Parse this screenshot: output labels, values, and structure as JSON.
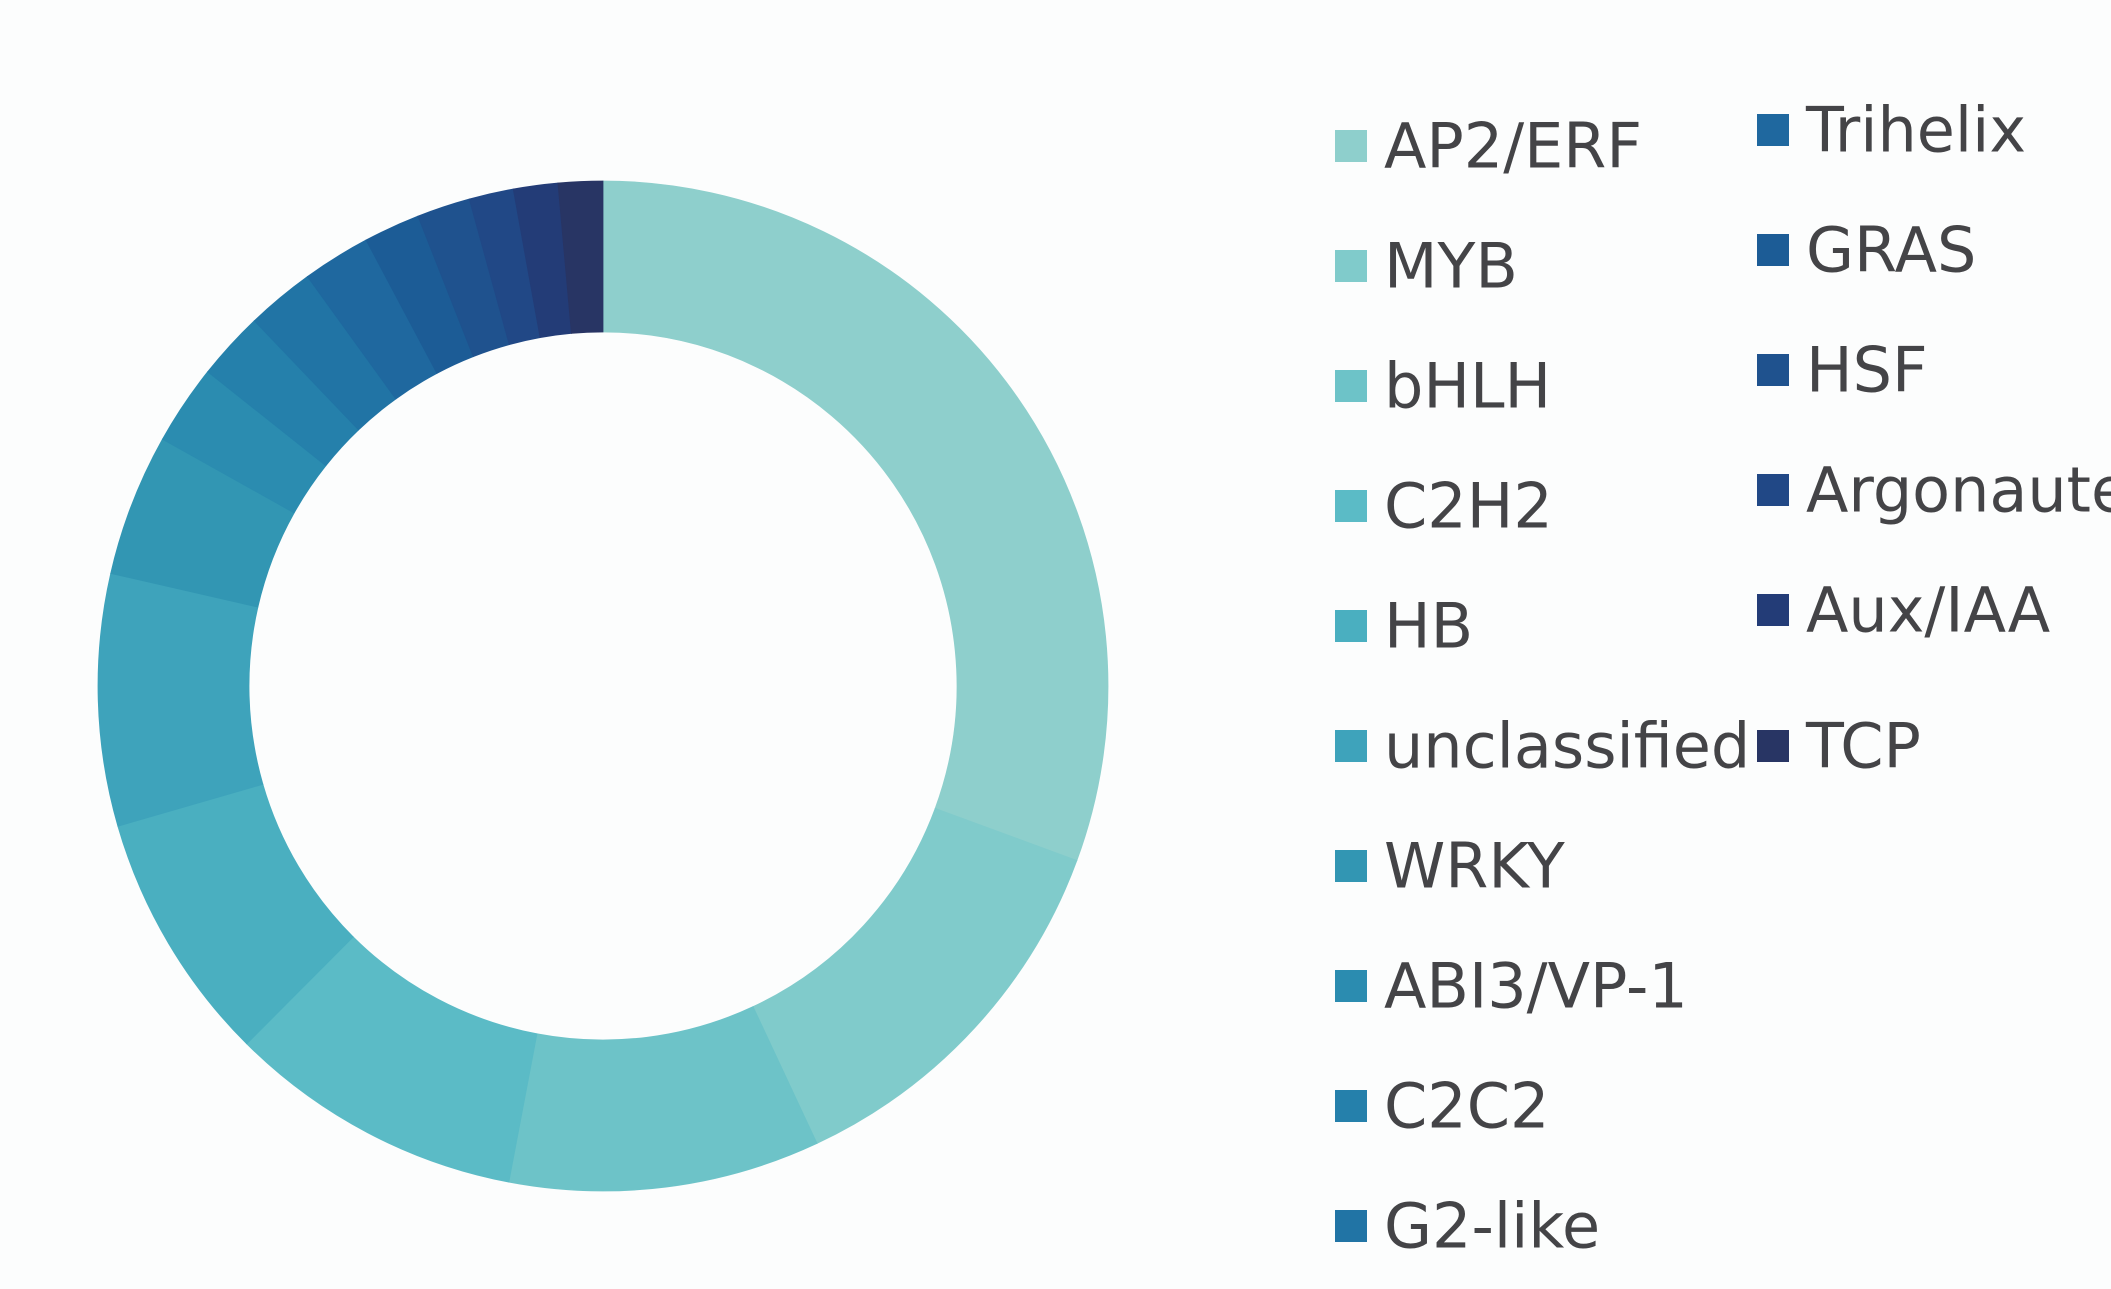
{
  "chart_data": {
    "type": "pie",
    "variant": "donut",
    "title": "",
    "legend_placement": "right",
    "categories": [
      "AP2/ERF",
      "MYB",
      "bHLH",
      "C2H2",
      "HB",
      "unclassified",
      "WRKY",
      "ABI3/VP-1",
      "C2C2",
      "G2-like",
      "Trihelix",
      "GRAS",
      "HSF",
      "Argonaute",
      "Aux/IAA",
      "TCP"
    ],
    "values": [
      32.3,
      13.1,
      10.5,
      10.0,
      8.5,
      8.5,
      4.8,
      2.7,
      2.3,
      2.3,
      2.3,
      1.9,
      1.8,
      1.5,
      1.5,
      1.5
    ],
    "colors": [
      "#8ecfcc",
      "#80cbcb",
      "#6dc3c8",
      "#5bbbc6",
      "#4aafc0",
      "#3ea3bb",
      "#3296b3",
      "#2b8cb0",
      "#2580ab",
      "#2174a5",
      "#1f689f",
      "#1c5c96",
      "#1f528e",
      "#214886",
      "#233c77",
      "#283564"
    ]
  }
}
